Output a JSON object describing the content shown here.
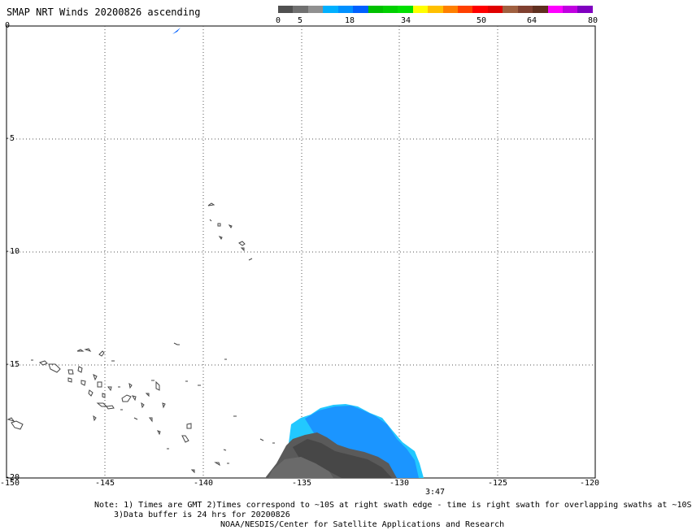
{
  "title": "SMAP NRT Winds 20200826 ascending",
  "legend": {
    "labels": [
      "0",
      "5",
      "18",
      "34",
      "50",
      "64",
      "80"
    ],
    "colors": [
      "#505050",
      "#707070",
      "#909090",
      "#00b0ff",
      "#0090ff",
      "#0060ff",
      "#00c000",
      "#00d000",
      "#00e000",
      "#ffff00",
      "#ffc000",
      "#ff8000",
      "#ff4000",
      "#ff0000",
      "#e00000",
      "#a06040",
      "#804030",
      "#603020",
      "#ff00ff",
      "#c000e0",
      "#8000c0"
    ]
  },
  "axes": {
    "lat_labels": [
      "0",
      "-5",
      "-10",
      "-15",
      "-20"
    ],
    "lon_labels": [
      "-150",
      "-145",
      "-140",
      "-135",
      "-130",
      "-125",
      "-120"
    ]
  },
  "time_label": "3:47",
  "notes": {
    "line1": "Note: 1) Times are GMT 2)Times correspond to ~10S at right swath edge - time is right swath for overlapping swaths at ~10S",
    "line2": "3)Data buffer is 24 hrs for 20200826",
    "line3": "NOAA/NESDIS/Center for Satellite Applications and Research"
  }
}
